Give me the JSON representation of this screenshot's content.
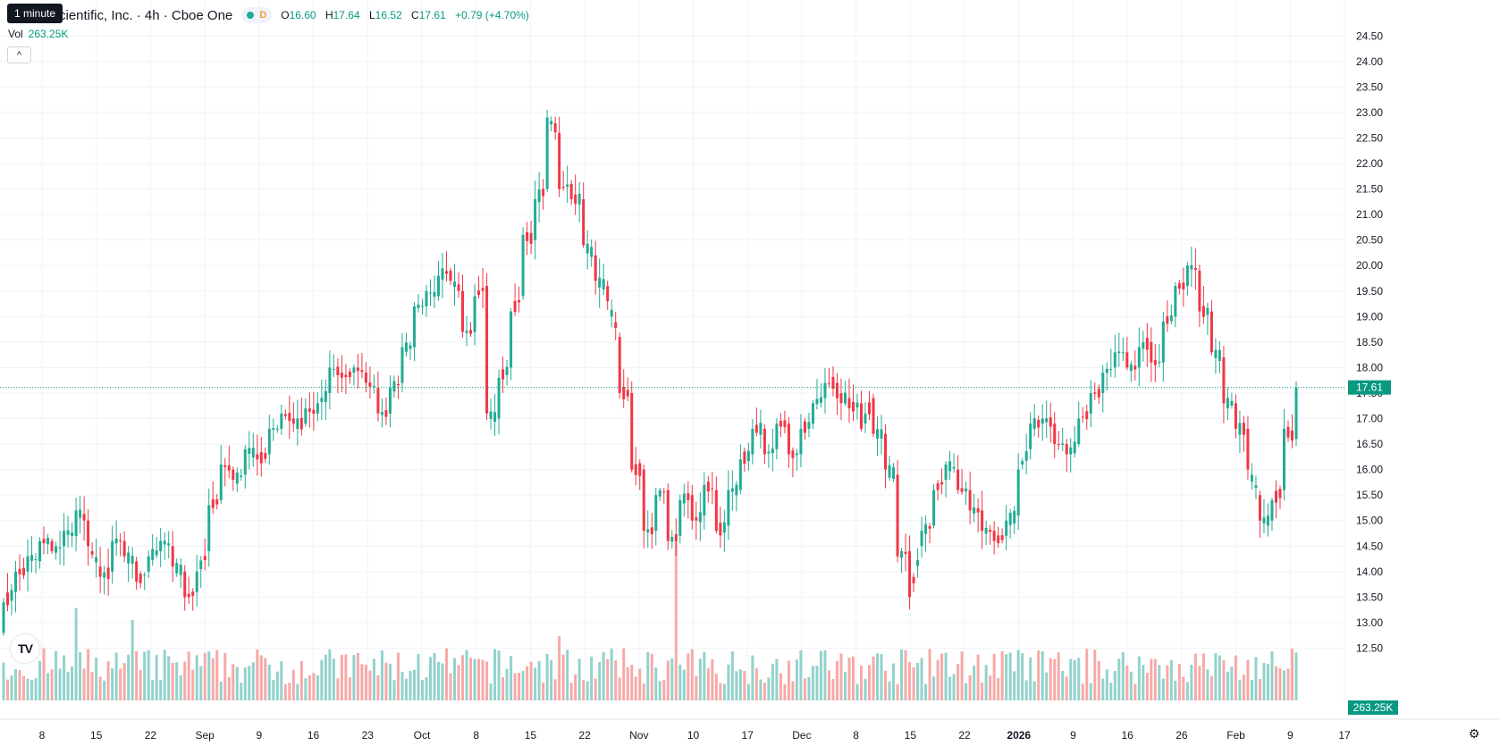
{
  "legend": {
    "title": "cientific, Inc. · 4h · Cboe One",
    "status_letter": "D",
    "o_label": "O",
    "o_value": "16.60",
    "h_label": "H",
    "h_value": "17.64",
    "l_label": "L",
    "l_value": "16.52",
    "c_label": "C",
    "c_value": "17.61",
    "change": "+0.79 (+4.70%)"
  },
  "tooltip": "1 minute",
  "volume": {
    "label": "Vol",
    "value": "263.25K"
  },
  "collapse_icon": "^",
  "logo_text": "TV",
  "colors": {
    "up": "#22ab94",
    "down": "#f23645",
    "up_vol": "#92d2cc",
    "down_vol": "#f7a9a7",
    "price_line": "#089981"
  },
  "chart_data": {
    "type": "candlestick",
    "price_axis": {
      "ylim": [
        12.0,
        24.75
      ],
      "ticks": [
        "24.50",
        "24.00",
        "23.50",
        "23.00",
        "22.50",
        "22.00",
        "21.50",
        "21.00",
        "20.50",
        "20.00",
        "19.50",
        "19.00",
        "18.50",
        "18.00",
        "17.50",
        "17.00",
        "16.50",
        "16.00",
        "15.50",
        "15.00",
        "14.50",
        "14.00",
        "13.50",
        "13.00",
        "12.50"
      ],
      "last_price_label": "17.61",
      "last_price": 17.61,
      "volume_label": "263.25K"
    },
    "time_axis": {
      "labels": [
        "8",
        "15",
        "22",
        "Sep",
        "9",
        "16",
        "23",
        "Oct",
        "8",
        "15",
        "22",
        "Nov",
        "10",
        "17",
        "Dec",
        "8",
        "15",
        "22",
        "2026",
        "9",
        "16",
        "26",
        "Feb",
        "9",
        "17"
      ]
    },
    "anchors": [
      {
        "o": 12.8,
        "c": 13.4
      },
      {
        "o": 13.6,
        "c": 14.0
      },
      {
        "o": 14.0,
        "c": 14.3
      },
      {
        "o": 14.2,
        "c": 14.6
      },
      {
        "o": 14.6,
        "c": 14.4
      },
      {
        "o": 14.5,
        "c": 14.8
      },
      {
        "o": 14.7,
        "c": 15.2
      },
      {
        "o": 15.0,
        "c": 14.5
      },
      {
        "o": 14.1,
        "c": 13.9
      },
      {
        "o": 14.0,
        "c": 14.6
      },
      {
        "o": 14.6,
        "c": 14.3
      },
      {
        "o": 14.2,
        "c": 13.8
      },
      {
        "o": 14.0,
        "c": 14.3
      },
      {
        "o": 14.4,
        "c": 14.6
      },
      {
        "o": 14.5,
        "c": 14.1
      },
      {
        "o": 14.0,
        "c": 13.5
      },
      {
        "o": 13.6,
        "c": 14.0
      },
      {
        "o": 14.4,
        "c": 15.3
      },
      {
        "o": 15.4,
        "c": 16.1
      },
      {
        "o": 16.0,
        "c": 15.8
      },
      {
        "o": 15.9,
        "c": 16.4
      },
      {
        "o": 16.3,
        "c": 16.2
      },
      {
        "o": 16.3,
        "c": 16.8
      },
      {
        "o": 16.8,
        "c": 17.1
      },
      {
        "o": 17.0,
        "c": 16.9
      },
      {
        "o": 16.9,
        "c": 17.2
      },
      {
        "o": 17.1,
        "c": 17.3
      },
      {
        "o": 17.5,
        "c": 18.0
      },
      {
        "o": 17.9,
        "c": 17.8
      },
      {
        "o": 17.9,
        "c": 18.0
      },
      {
        "o": 17.9,
        "c": 17.7
      },
      {
        "o": 17.6,
        "c": 17.1
      },
      {
        "o": 17.1,
        "c": 17.6
      },
      {
        "o": 17.7,
        "c": 18.4
      },
      {
        "o": 18.4,
        "c": 19.2
      },
      {
        "o": 19.2,
        "c": 19.5
      },
      {
        "o": 19.4,
        "c": 19.8
      },
      {
        "o": 19.9,
        "c": 19.7
      },
      {
        "o": 19.5,
        "c": 18.7
      },
      {
        "o": 18.7,
        "c": 19.4
      },
      {
        "o": 19.6,
        "c": 17.1
      },
      {
        "o": 17.0,
        "c": 17.8
      },
      {
        "o": 18.0,
        "c": 19.1
      },
      {
        "o": 19.4,
        "c": 20.6
      },
      {
        "o": 20.5,
        "c": 21.3
      },
      {
        "o": 21.5,
        "c": 22.9
      },
      {
        "o": 22.6,
        "c": 21.5
      },
      {
        "o": 21.6,
        "c": 21.3
      },
      {
        "o": 21.3,
        "c": 20.4
      },
      {
        "o": 20.2,
        "c": 19.7
      },
      {
        "o": 19.6,
        "c": 19.3
      },
      {
        "o": 18.6,
        "c": 17.5
      },
      {
        "o": 17.5,
        "c": 16.0
      },
      {
        "o": 16.0,
        "c": 14.8
      },
      {
        "o": 14.8,
        "c": 15.5
      },
      {
        "o": 15.6,
        "c": 14.6
      },
      {
        "o": 14.7,
        "c": 15.4
      },
      {
        "o": 15.5,
        "c": 15.0
      },
      {
        "o": 15.1,
        "c": 15.7
      },
      {
        "o": 15.6,
        "c": 14.8
      },
      {
        "o": 14.9,
        "c": 15.6
      },
      {
        "o": 15.6,
        "c": 16.2
      },
      {
        "o": 16.3,
        "c": 16.8
      },
      {
        "o": 16.8,
        "c": 16.3
      },
      {
        "o": 16.4,
        "c": 16.9
      },
      {
        "o": 16.9,
        "c": 16.3
      },
      {
        "o": 16.3,
        "c": 16.8
      },
      {
        "o": 16.9,
        "c": 17.3
      },
      {
        "o": 17.4,
        "c": 17.7
      },
      {
        "o": 17.7,
        "c": 17.4
      },
      {
        "o": 17.4,
        "c": 17.2
      },
      {
        "o": 17.3,
        "c": 16.8
      },
      {
        "o": 17.4,
        "c": 16.7
      },
      {
        "o": 16.7,
        "c": 16.0
      },
      {
        "o": 15.9,
        "c": 14.3
      },
      {
        "o": 14.4,
        "c": 13.5
      },
      {
        "o": 14.5,
        "c": 14.8
      },
      {
        "o": 14.9,
        "c": 15.6
      },
      {
        "o": 15.8,
        "c": 16.1
      },
      {
        "o": 16.0,
        "c": 15.6
      },
      {
        "o": 15.6,
        "c": 15.2
      },
      {
        "o": 15.2,
        "c": 14.8
      },
      {
        "o": 14.8,
        "c": 14.6
      },
      {
        "o": 14.7,
        "c": 15.0
      },
      {
        "o": 15.1,
        "c": 16.0
      },
      {
        "o": 16.4,
        "c": 16.9
      },
      {
        "o": 16.9,
        "c": 17.0
      },
      {
        "o": 16.9,
        "c": 16.5
      },
      {
        "o": 16.5,
        "c": 16.3
      },
      {
        "o": 16.5,
        "c": 17.0
      },
      {
        "o": 17.1,
        "c": 17.5
      },
      {
        "o": 17.5,
        "c": 17.9
      },
      {
        "o": 18.0,
        "c": 18.3
      },
      {
        "o": 18.3,
        "c": 18.0
      },
      {
        "o": 18.0,
        "c": 18.4
      },
      {
        "o": 18.5,
        "c": 18.1
      },
      {
        "o": 18.1,
        "c": 18.9
      },
      {
        "o": 19.0,
        "c": 19.6
      },
      {
        "o": 19.6,
        "c": 20.0
      },
      {
        "o": 19.9,
        "c": 19.1
      },
      {
        "o": 19.1,
        "c": 18.3
      },
      {
        "o": 18.2,
        "c": 17.3
      },
      {
        "o": 17.3,
        "c": 16.8
      },
      {
        "o": 16.8,
        "c": 16.0
      },
      {
        "o": 15.5,
        "c": 15.0
      },
      {
        "o": 15.0,
        "c": 15.4
      },
      {
        "o": 15.6,
        "c": 16.8
      },
      {
        "o": 16.6,
        "c": 17.61
      }
    ],
    "volume_spikes": [
      {
        "t": 0.52,
        "v": 4.0
      },
      {
        "t": 0.1,
        "v": 3.4
      },
      {
        "t": 0.36,
        "v": 1.9
      },
      {
        "t": 0.45,
        "v": 1.55
      },
      {
        "t": 0.055,
        "v": 2.3
      },
      {
        "t": 0.1,
        "v": 2.0
      },
      {
        "t": 0.5,
        "v": 1.65
      },
      {
        "t": 0.43,
        "v": 1.6
      }
    ]
  }
}
